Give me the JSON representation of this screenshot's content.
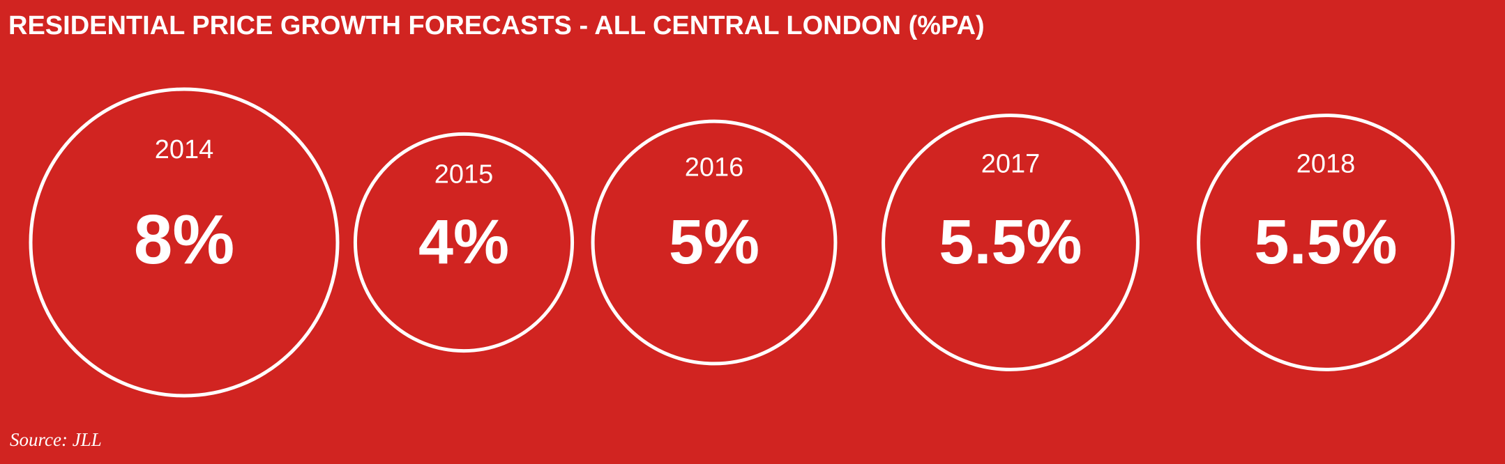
{
  "chart_data": {
    "type": "bubble",
    "title": "RESIDENTIAL PRICE GROWTH FORECASTS - ALL CENTRAL LONDON (%PA)",
    "categories": [
      "2014",
      "2015",
      "2016",
      "2017",
      "2018"
    ],
    "values": [
      8,
      4,
      5,
      5.5,
      5.5
    ],
    "value_labels": [
      "8%",
      "4%",
      "5%",
      "5.5%",
      "5.5%"
    ],
    "color": "#ffffff",
    "source": "Source: JLL"
  }
}
